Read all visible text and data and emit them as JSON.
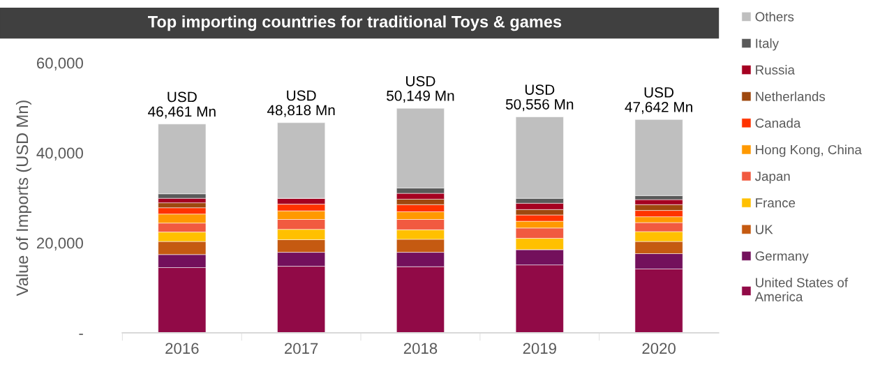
{
  "chart_data": {
    "type": "bar",
    "stacked": true,
    "title": "Top importing countries for traditional Toys & games",
    "ylabel": "Value of Imports (USD Mn)",
    "categories": [
      "2016",
      "2017",
      "2018",
      "2019",
      "2020"
    ],
    "series": [
      {
        "name": "United States of\nAmerica",
        "color": "#910a47",
        "values": [
          14500,
          14800,
          14700,
          15100,
          14200
        ]
      },
      {
        "name": "Germany",
        "color": "#73105c",
        "values": [
          2900,
          3100,
          3200,
          3400,
          3400
        ]
      },
      {
        "name": "UK",
        "color": "#c55a11",
        "values": [
          2900,
          2800,
          2900,
          0,
          2700
        ]
      },
      {
        "name": "France",
        "color": "#ffc000",
        "values": [
          2100,
          2300,
          2100,
          2500,
          2200
        ]
      },
      {
        "name": "Japan",
        "color": "#f15a40",
        "values": [
          2000,
          2200,
          2300,
          2300,
          2000
        ]
      },
      {
        "name": "Hong Kong, China",
        "color": "#ff9900",
        "values": [
          2000,
          1900,
          1700,
          1500,
          1300
        ]
      },
      {
        "name": "Canada",
        "color": "#ff3300",
        "values": [
          1400,
          1500,
          1600,
          1400,
          1400
        ]
      },
      {
        "name": "Netherlands",
        "color": "#9e480e",
        "values": [
          1100,
          0,
          1200,
          1200,
          1300
        ]
      },
      {
        "name": "Russia",
        "color": "#a50021",
        "values": [
          1000,
          1300,
          1300,
          1400,
          1100
        ]
      },
      {
        "name": "Italy",
        "color": "#595959",
        "values": [
          1000,
          0,
          1200,
          1100,
          900
        ]
      },
      {
        "name": "Others",
        "color": "#bfbfbf",
        "values": [
          15500,
          16800,
          17700,
          18100,
          16900
        ]
      }
    ],
    "ylim": [
      0,
      60000
    ],
    "yticks": [
      {
        "value": 0,
        "label": "-"
      },
      {
        "value": 20000,
        "label": "20,000"
      },
      {
        "value": 40000,
        "label": "40,000"
      },
      {
        "value": 60000,
        "label": "60,000"
      }
    ],
    "totals": [
      "USD\n46,461 Mn",
      "USD\n48,818 Mn",
      "USD\n50,149 Mn",
      "USD\n50,556 Mn",
      "USD\n47,642 Mn"
    ],
    "grid": false,
    "legend": "right"
  }
}
